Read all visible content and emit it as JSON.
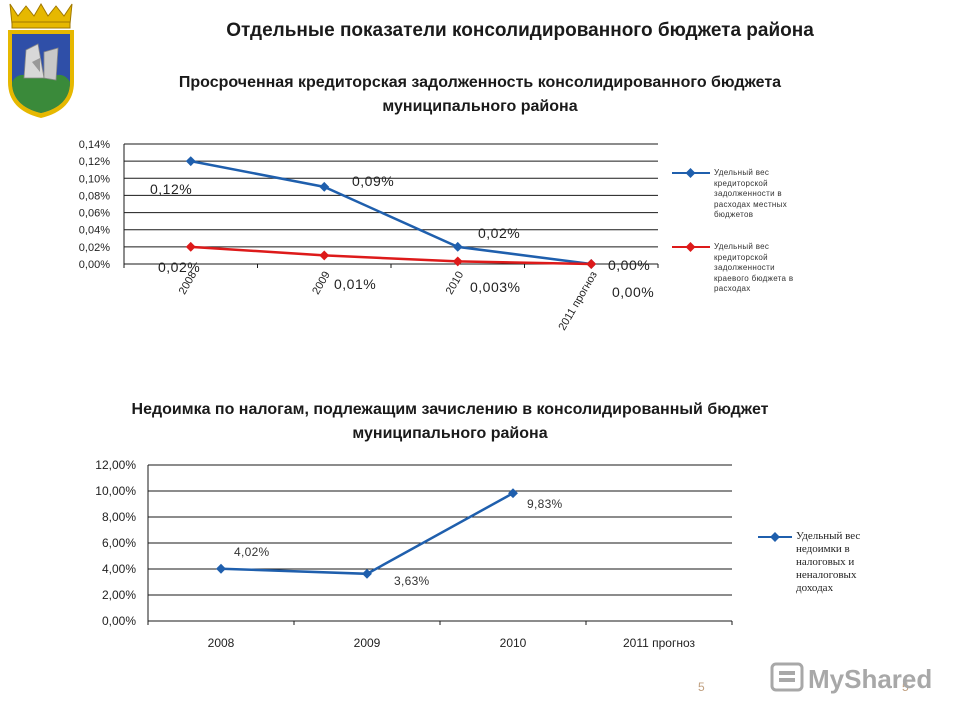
{
  "page": {
    "title": "Отдельные показатели консолидированного бюджета района",
    "page_number": "5",
    "page_number_right": "5",
    "brand": "MyShared"
  },
  "colors": {
    "blue": "#1f5fad",
    "red": "#dd1a1a",
    "gold": "#e6b800",
    "shield_blue": "#2f4fa8",
    "shield_green": "#3a8a3a"
  },
  "chart_data": [
    {
      "type": "line",
      "title": "Просроченная кредиторская задолженность консолидированного бюджета муниципального района",
      "categories": [
        "2008",
        "2009",
        "2010",
        "2011 прогноз"
      ],
      "ylim": [
        0,
        0.14
      ],
      "yticks": [
        "0,00%",
        "0,02%",
        "0,04%",
        "0,06%",
        "0,08%",
        "0,10%",
        "0,12%",
        "0,14%"
      ],
      "ytick_values": [
        0,
        0.02,
        0.04,
        0.06,
        0.08,
        0.1,
        0.12,
        0.14
      ],
      "grid": true,
      "legend_position": "right",
      "series": [
        {
          "name": "Удельный вес кредиторской задолженности в расходах местных бюджетов",
          "color": "#1f5fad",
          "values": [
            0.12,
            0.09,
            0.02,
            0.0
          ],
          "labels": [
            "0,12%",
            "0,09%",
            "0,02%",
            "0,00%"
          ]
        },
        {
          "name": "Удельный вес кредиторской задолженности краевого бюджета в расходах",
          "color": "#dd1a1a",
          "values": [
            0.02,
            0.01,
            0.003,
            0.0
          ],
          "labels": [
            "0,02%",
            "0,01%",
            "0,003%",
            "0,00%"
          ]
        }
      ]
    },
    {
      "type": "line",
      "title": "Недоимка по налогам, подлежащим зачислению в консолидированный бюджет муниципального района",
      "categories": [
        "2008",
        "2009",
        "2010",
        "2011 прогноз"
      ],
      "ylim": [
        0,
        12
      ],
      "yticks": [
        "0,00%",
        "2,00%",
        "4,00%",
        "6,00%",
        "8,00%",
        "10,00%",
        "12,00%"
      ],
      "ytick_values": [
        0,
        2,
        4,
        6,
        8,
        10,
        12
      ],
      "grid": true,
      "legend_position": "right",
      "series": [
        {
          "name": "Удельный вес недоимки в налоговых и неналоговых доходах",
          "color": "#1f5fad",
          "values": [
            4.02,
            3.63,
            9.83,
            null
          ],
          "labels": [
            "4,02%",
            "3,63%",
            "9,83%",
            ""
          ]
        }
      ]
    }
  ]
}
